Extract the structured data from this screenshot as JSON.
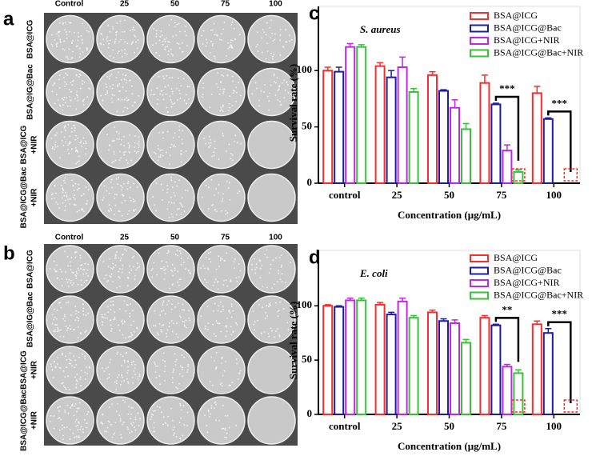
{
  "photo_panels": [
    {
      "label": "a",
      "columns": [
        "Control",
        "25",
        "50",
        "75",
        "100"
      ],
      "rows": [
        [
          "BSA@ICG"
        ],
        [
          "BSA@IG@Bac"
        ],
        [
          "BSA@ICG",
          "+NIR"
        ],
        [
          "BSA@ICG@Bac",
          "+NIR"
        ]
      ]
    },
    {
      "label": "b",
      "columns": [
        "Control",
        "25",
        "50",
        "75",
        "100"
      ],
      "rows": [
        [
          "BSA@ICG"
        ],
        [
          "BSA@IG@Bac"
        ],
        [
          "BSA@ICG",
          "+NIR"
        ],
        [
          "BSA@ICG@Bac",
          "+NIR"
        ]
      ]
    }
  ],
  "chart_data": [
    {
      "type": "bar",
      "panel": "c",
      "annotation": "S. aureus",
      "xlabel": "Concentration (μg/mL)",
      "ylabel": "Survival rate (%)",
      "categories": [
        "control",
        "25",
        "50",
        "75",
        "100"
      ],
      "series": [
        {
          "name": "BSA@ICG",
          "color": "#ff2a2a",
          "values": [
            100,
            104,
            96,
            89,
            80
          ],
          "errors": [
            3,
            3,
            3,
            7,
            6
          ]
        },
        {
          "name": "BSA@ICG@Bac",
          "color": "#1c1ca8",
          "values": [
            99,
            94,
            82,
            70,
            57
          ],
          "errors": [
            4,
            6,
            1,
            1,
            1
          ]
        },
        {
          "name": "BSA@ICG+NIR",
          "color": "#c324e6",
          "values": [
            121,
            103,
            67,
            29,
            0
          ],
          "errors": [
            3,
            9,
            7,
            5,
            0
          ]
        },
        {
          "name": "BSA@ICG@Bac+NIR",
          "color": "#36c236",
          "values": [
            121,
            81,
            48,
            10,
            0
          ],
          "errors": [
            2,
            3,
            5,
            2,
            0
          ]
        }
      ],
      "significance_labels": [
        null,
        null,
        null,
        "***",
        "***"
      ],
      "ylim": [
        0,
        157
      ],
      "yticks": [
        0,
        50,
        100
      ]
    },
    {
      "type": "bar",
      "panel": "d",
      "annotation": "E. coli",
      "xlabel": "Concentration (μg/mL)",
      "ylabel": "Survival rate (%)",
      "categories": [
        "control",
        "25",
        "50",
        "75",
        "100"
      ],
      "series": [
        {
          "name": "BSA@ICG",
          "color": "#ff2a2a",
          "values": [
            100,
            101,
            94,
            89,
            83
          ],
          "errors": [
            1,
            2,
            2,
            2,
            3
          ]
        },
        {
          "name": "BSA@ICG@Bac",
          "color": "#1c1ca8",
          "values": [
            99,
            92,
            86,
            82,
            75
          ],
          "errors": [
            1,
            2,
            2,
            1,
            4
          ]
        },
        {
          "name": "BSA@ICG+NIR",
          "color": "#c324e6",
          "values": [
            105,
            104,
            84,
            44,
            0
          ],
          "errors": [
            2,
            3,
            3,
            2,
            0
          ]
        },
        {
          "name": "BSA@ICG@Bac+NIR",
          "color": "#36c236",
          "values": [
            105,
            89,
            66,
            38,
            0
          ],
          "errors": [
            2,
            2,
            3,
            3,
            0
          ]
        }
      ],
      "significance_labels": [
        null,
        null,
        null,
        "**",
        "***"
      ],
      "ylim": [
        0,
        151
      ],
      "yticks": [
        0,
        50,
        100
      ]
    }
  ]
}
